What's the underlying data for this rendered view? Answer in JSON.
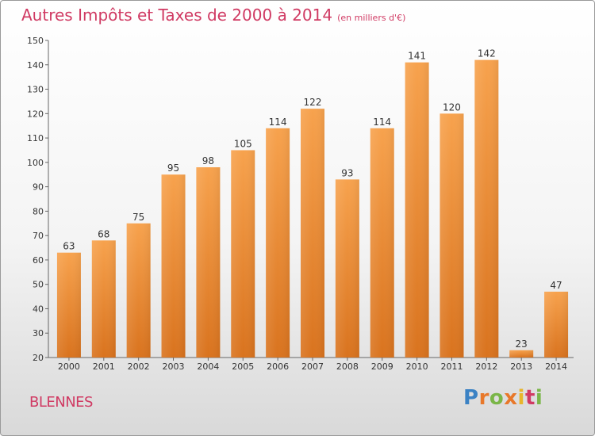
{
  "header": {
    "title": "Autres Impôts et Taxes de 2000 à 2014",
    "subtitle": "(en milliers d'€)"
  },
  "footer": {
    "place": "BLENNES",
    "logo_letters": [
      "P",
      "r",
      "o",
      "x",
      "i",
      "t",
      "i"
    ]
  },
  "colors": {
    "accent": "#d03a63",
    "bar_light": "#f7a24d",
    "bar_dark": "#d9731e"
  },
  "chart_data": {
    "type": "bar",
    "title": "Autres Impôts et Taxes de 2000 à 2014",
    "xlabel": "",
    "ylabel": "",
    "categories": [
      "2000",
      "2001",
      "2002",
      "2003",
      "2004",
      "2005",
      "2006",
      "2007",
      "2008",
      "2009",
      "2010",
      "2011",
      "2012",
      "2013",
      "2014"
    ],
    "values": [
      63,
      68,
      75,
      95,
      98,
      105,
      114,
      122,
      93,
      114,
      141,
      120,
      142,
      23,
      47
    ],
    "ylim": [
      20,
      150
    ],
    "yticks": [
      20,
      30,
      40,
      50,
      60,
      70,
      80,
      90,
      100,
      110,
      120,
      130,
      140,
      150
    ],
    "grid": false,
    "data_labels": true
  }
}
